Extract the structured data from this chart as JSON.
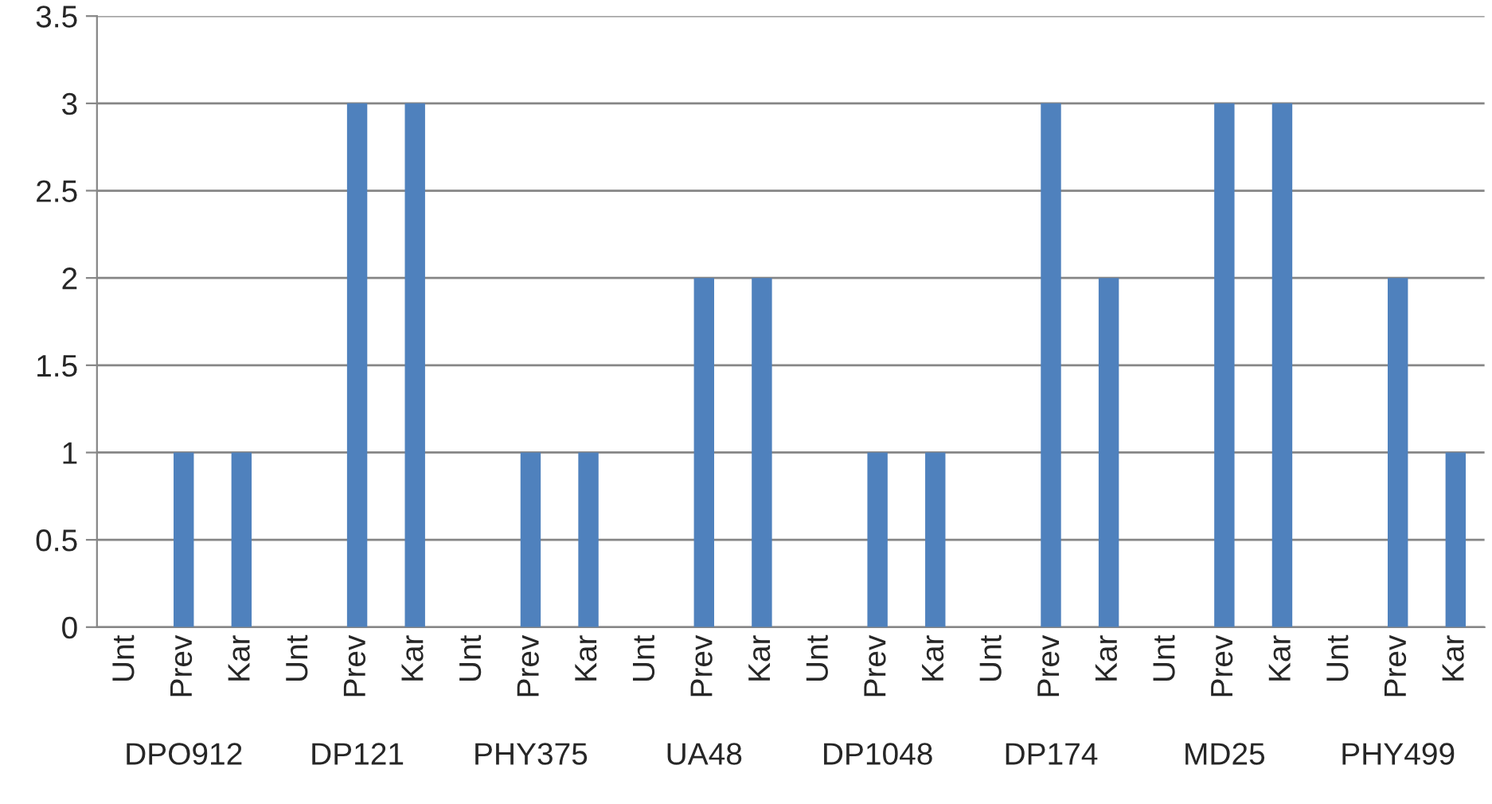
{
  "chart_data": {
    "type": "bar",
    "categories": [
      "Unt",
      "Prev",
      "Kar",
      "Unt",
      "Prev",
      "Kar",
      "Unt",
      "Prev",
      "Kar",
      "Unt",
      "Prev",
      "Kar",
      "Unt",
      "Prev",
      "Kar",
      "Unt",
      "Prev",
      "Kar",
      "Unt",
      "Prev",
      "Kar",
      "Unt",
      "Prev",
      "Kar"
    ],
    "values": [
      0,
      1,
      1,
      0,
      3,
      3,
      0,
      1,
      1,
      0,
      2,
      2,
      0,
      1,
      1,
      0,
      3,
      2,
      0,
      3,
      3,
      0,
      2,
      1
    ],
    "color": "#4f81bd",
    "annotations": [
      "DPO912",
      "DP121",
      "PHY375",
      "UA48",
      "DP1048",
      "DP174",
      "MD25",
      "PHY499"
    ],
    "ylim": [
      0,
      3.5
    ],
    "yticks": [
      0,
      0.5,
      1,
      1.5,
      2,
      2.5,
      3,
      3.5
    ],
    "grid": "y"
  }
}
